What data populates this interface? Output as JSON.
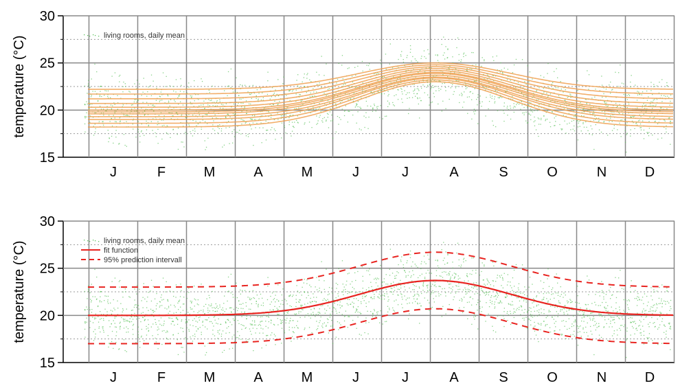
{
  "chart_data": [
    {
      "type": "line",
      "ylabel": "temperature (°C)",
      "xlabel": "",
      "ylim": [
        15,
        30
      ],
      "yticks": [
        15,
        20,
        25,
        30
      ],
      "categories": [
        "J",
        "F",
        "M",
        "A",
        "M",
        "J",
        "J",
        "A",
        "S",
        "O",
        "N",
        "D"
      ],
      "grid": "major solid gray, minor dotted",
      "legend": [
        "living rooms, daily mean"
      ],
      "legend_placement": "top-left",
      "colors": {
        "scatter": "#5cc25c",
        "fit": "#f0a050",
        "grid": "#888888"
      },
      "series": [
        {
          "kind": "scatter",
          "name": "living rooms, daily mean",
          "daily_mean_baseline": 20.0,
          "summer_peak": 23.5,
          "peak_month": 7.5,
          "spread": 1.6
        },
        {
          "kind": "fit-curve-family",
          "count": 12,
          "winter_base_values": [
            18.2,
            18.6,
            19.0,
            19.3,
            19.6,
            19.8,
            20.0,
            20.3,
            20.7,
            21.2,
            21.7,
            22.2
          ],
          "summer_peak_values": [
            23.0,
            23.2,
            23.4,
            23.5,
            23.7,
            23.9,
            24.0,
            24.2,
            24.4,
            24.6,
            24.8,
            25.0
          ],
          "peak_month": 7.6
        }
      ]
    },
    {
      "type": "line",
      "ylabel": "temperature (°C)",
      "xlabel": "",
      "ylim": [
        15,
        30
      ],
      "yticks": [
        15,
        20,
        25,
        30
      ],
      "categories": [
        "J",
        "F",
        "M",
        "A",
        "M",
        "J",
        "J",
        "A",
        "S",
        "O",
        "N",
        "D"
      ],
      "grid": "major solid gray, minor dotted",
      "legend": [
        "living rooms, daily mean",
        "fit function",
        "95% prediction intervall"
      ],
      "legend_placement": "top-left",
      "colors": {
        "scatter": "#5cc25c",
        "fit": "#e8231f",
        "grid": "#888888"
      },
      "series": [
        {
          "kind": "scatter",
          "name": "living rooms, daily mean",
          "daily_mean_baseline": 20.0,
          "summer_peak": 23.5,
          "peak_month": 7.5,
          "spread": 1.6
        },
        {
          "kind": "fit",
          "name": "fit function",
          "base": 20.0,
          "peak": 23.7,
          "peak_month": 7.6
        },
        {
          "kind": "interval",
          "name": "95% prediction intervall",
          "offset": 3.0,
          "style": "dashed"
        }
      ]
    }
  ]
}
